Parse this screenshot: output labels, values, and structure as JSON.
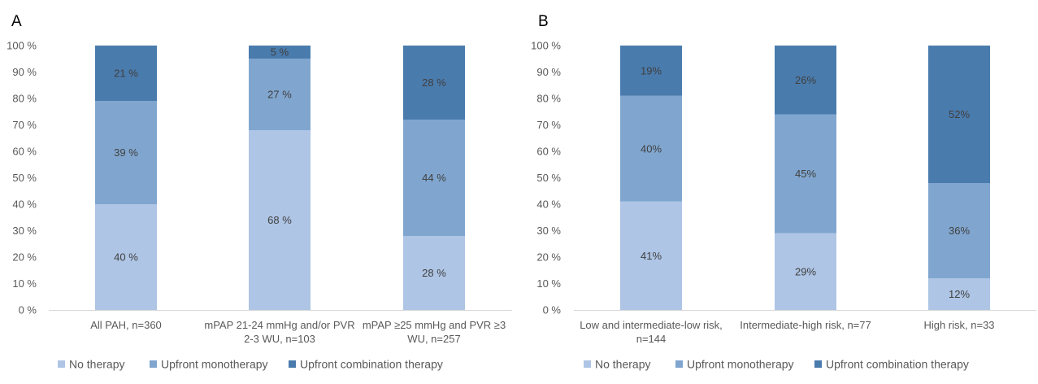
{
  "colors": {
    "no_therapy": "#aec5e5",
    "monotherapy": "#80a6cf",
    "combination": "#4a7bad",
    "axis": "#d9d9d9"
  },
  "chart_data": [
    {
      "panel": "A",
      "type": "bar",
      "stacked": true,
      "categories": [
        [
          "All PAH, n=360"
        ],
        [
          "mPAP 21-24 mmHg and/or PVR",
          "2-3 WU, n=103"
        ],
        [
          "mPAP ≥25 mmHg and PVR ≥3",
          "WU, n=257"
        ]
      ],
      "series": [
        {
          "name": "No therapy",
          "values": [
            40,
            68,
            28
          ],
          "labels": [
            "40 %",
            "68 %",
            "28 %"
          ]
        },
        {
          "name": "Upfront monotherapy",
          "values": [
            39,
            27,
            44
          ],
          "labels": [
            "39 %",
            "27 %",
            "44 %"
          ]
        },
        {
          "name": "Upfront combination therapy",
          "values": [
            21,
            5,
            28
          ],
          "labels": [
            "21 %",
            "5 %",
            "28 %"
          ]
        }
      ],
      "ylim": [
        0,
        100
      ],
      "yticks": [
        "0 %",
        "10 %",
        "20 %",
        "30 %",
        "40 %",
        "50 %",
        "60 %",
        "70 %",
        "80 %",
        "90 %",
        "100 %"
      ],
      "legend": "bottom",
      "grid": false
    },
    {
      "panel": "B",
      "type": "bar",
      "stacked": true,
      "categories": [
        [
          "Low and intermediate-low risk,",
          "n=144"
        ],
        [
          "Intermediate-high risk, n=77"
        ],
        [
          "High risk, n=33"
        ]
      ],
      "series": [
        {
          "name": "No therapy",
          "values": [
            41,
            29,
            12
          ],
          "labels": [
            "41%",
            "29%",
            "12%"
          ]
        },
        {
          "name": "Upfront monotherapy",
          "values": [
            40,
            45,
            36
          ],
          "labels": [
            "40%",
            "45%",
            "36%"
          ]
        },
        {
          "name": "Upfront combination therapy",
          "values": [
            19,
            26,
            52
          ],
          "labels": [
            "19%",
            "26%",
            "52%"
          ]
        }
      ],
      "ylim": [
        0,
        100
      ],
      "yticks": [
        "0 %",
        "10 %",
        "20 %",
        "30 %",
        "40 %",
        "50 %",
        "60 %",
        "70 %",
        "80 %",
        "90 %",
        "100 %"
      ],
      "legend": "bottom",
      "grid": false
    }
  ]
}
